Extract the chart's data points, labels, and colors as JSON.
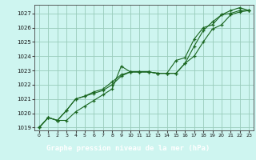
{
  "title": "Graphe pression niveau de la mer (hPa)",
  "bg_color": "#cef5f0",
  "plot_bg_color": "#cef5f0",
  "title_bar_color": "#1a6620",
  "title_text_color": "#ffffff",
  "grid_color": "#99ccbb",
  "line_color": "#1a6620",
  "xlim_min": -0.5,
  "xlim_max": 23.5,
  "ylim_min": 1018.8,
  "ylim_max": 1027.6,
  "xticks": [
    0,
    1,
    2,
    3,
    4,
    5,
    6,
    7,
    8,
    9,
    10,
    11,
    12,
    13,
    14,
    15,
    16,
    17,
    18,
    19,
    20,
    21,
    22,
    23
  ],
  "yticks": [
    1019,
    1020,
    1021,
    1022,
    1023,
    1024,
    1025,
    1026,
    1027
  ],
  "line1": [
    1019.0,
    1019.7,
    1019.5,
    1019.5,
    1020.1,
    1020.5,
    1020.9,
    1021.3,
    1021.7,
    1023.3,
    1022.9,
    1022.9,
    1022.9,
    1022.8,
    1022.8,
    1023.7,
    1023.9,
    1025.2,
    1026.0,
    1026.2,
    1026.9,
    1027.0,
    1027.2,
    1027.2
  ],
  "line2": [
    1019.0,
    1019.7,
    1019.5,
    1020.2,
    1021.0,
    1021.2,
    1021.5,
    1021.7,
    1022.2,
    1022.7,
    1022.9,
    1022.9,
    1022.9,
    1022.8,
    1022.8,
    1022.8,
    1023.5,
    1024.0,
    1025.0,
    1025.9,
    1026.2,
    1026.9,
    1027.1,
    1027.2
  ],
  "line3": [
    1019.0,
    1019.7,
    1019.5,
    1020.2,
    1021.0,
    1021.2,
    1021.4,
    1021.6,
    1022.0,
    1022.6,
    1022.9,
    1022.9,
    1022.9,
    1022.8,
    1022.8,
    1022.8,
    1023.5,
    1024.7,
    1025.8,
    1026.4,
    1026.9,
    1027.2,
    1027.4,
    1027.2
  ]
}
